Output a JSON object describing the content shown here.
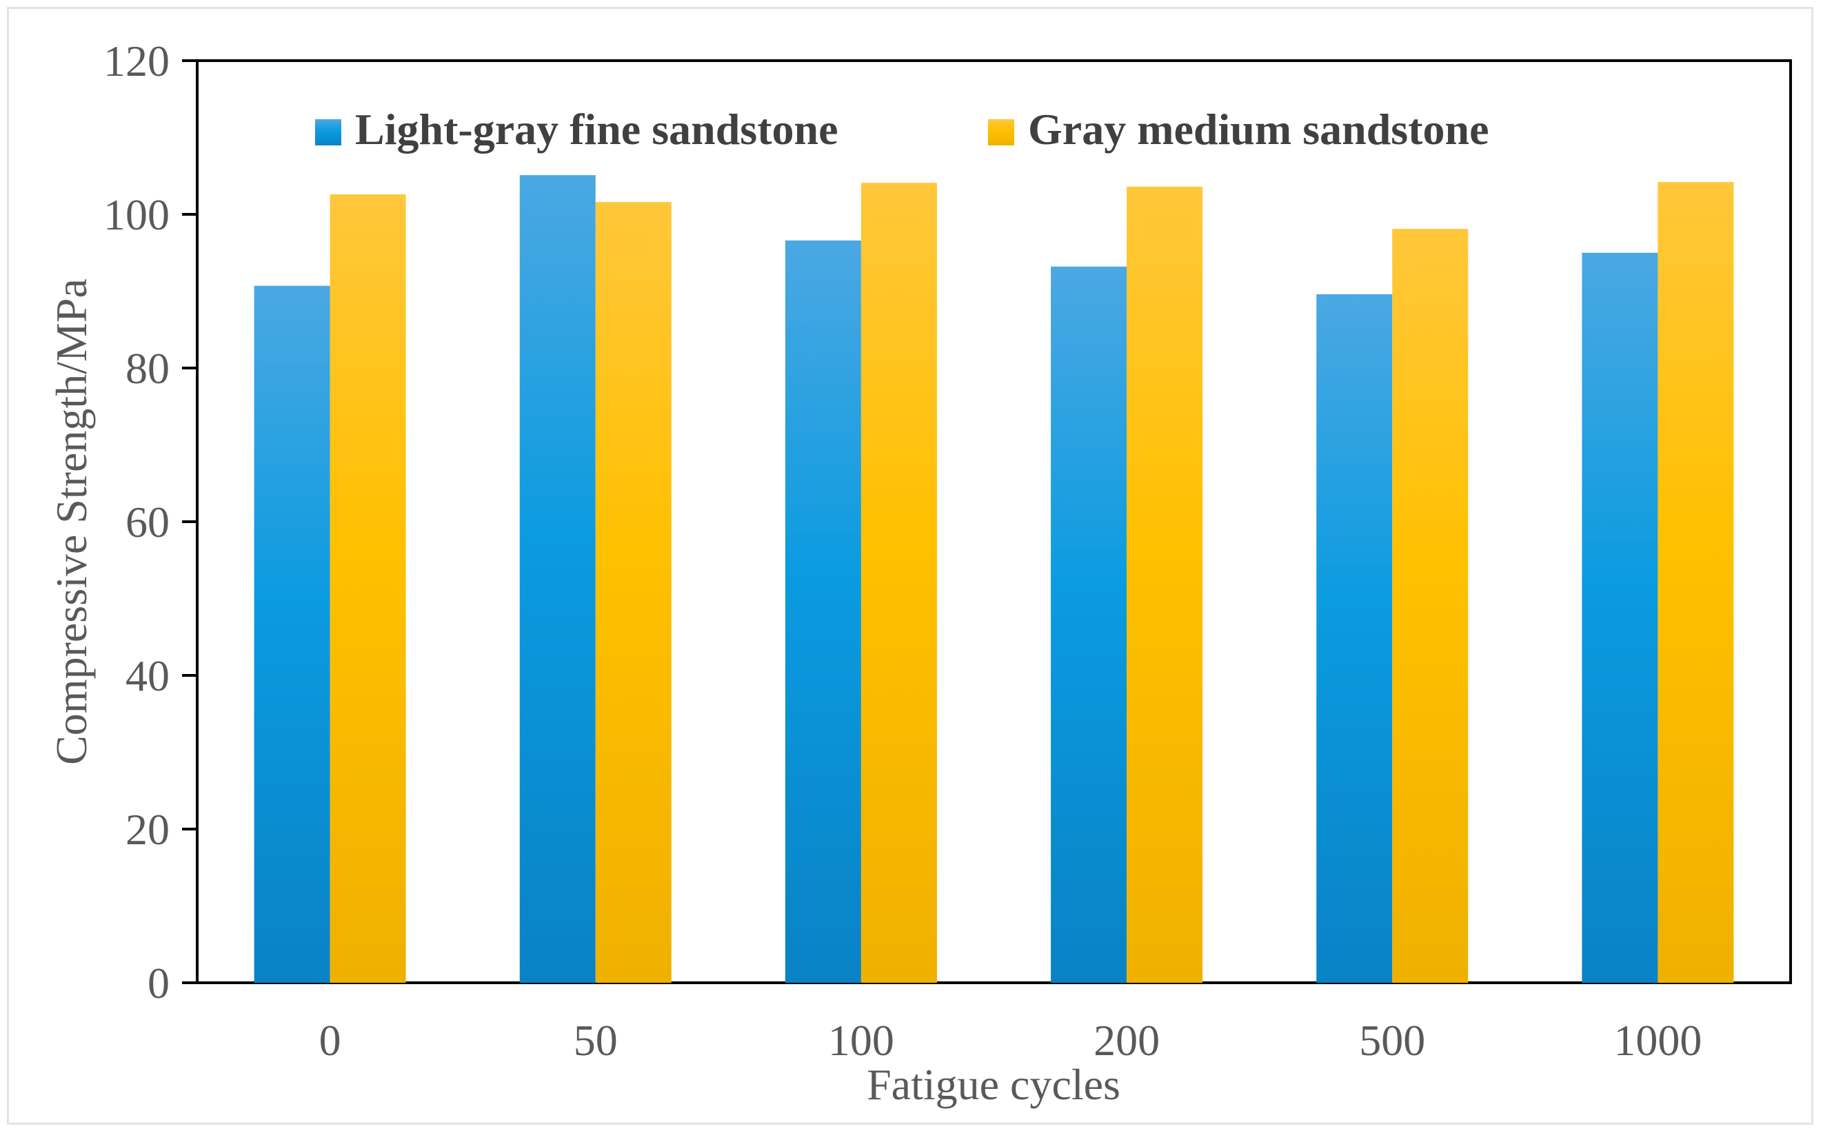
{
  "chart_data": {
    "type": "bar",
    "title": "",
    "xlabel": "Fatigue cycles",
    "ylabel": "Compressive Strength/MPa",
    "categories": [
      "0",
      "50",
      "100",
      "200",
      "500",
      "1000"
    ],
    "ylim": [
      0,
      120
    ],
    "yticks": [
      "0",
      "20",
      "40",
      "60",
      "80",
      "100",
      "120"
    ],
    "grid": false,
    "legend_position": "top",
    "series": [
      {
        "name": "Light-gray fine sandstone",
        "color_top": "#4ba8e2",
        "color_mid": "#0b9be0",
        "color_bottom": "#0a82c6",
        "values": [
          90.7,
          105.1,
          96.6,
          93.2,
          89.6,
          95.0
        ]
      },
      {
        "name": "Gray medium sandstone",
        "color_top": "#ffc73a",
        "color_mid": "#ffc000",
        "color_bottom": "#f0b000",
        "values": [
          102.6,
          101.6,
          104.1,
          103.6,
          98.1,
          104.2
        ]
      }
    ]
  }
}
